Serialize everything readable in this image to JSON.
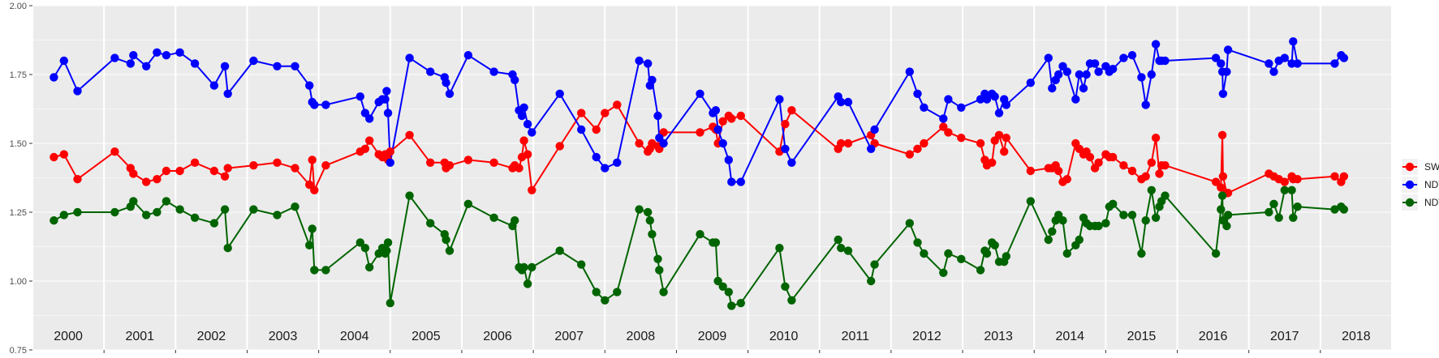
{
  "chart_data": {
    "type": "line",
    "title": "",
    "xlabel": "",
    "ylabel": "",
    "ylim": [
      0.75,
      2.0
    ],
    "y_ticks": [
      "0.75",
      "1.00",
      "1.25",
      "1.50",
      "1.75",
      "2.00"
    ],
    "year_range": [
      2000,
      2019
    ],
    "year_labels": [
      "2000",
      "2001",
      "2002",
      "2003",
      "2004",
      "2005",
      "2006",
      "2007",
      "2008",
      "2009",
      "2010",
      "2011",
      "2012",
      "2013",
      "2014",
      "2015",
      "2016",
      "2017",
      "2018"
    ],
    "grid": true,
    "legend_position": "right",
    "series": [
      {
        "name": "SWIR",
        "color": "#ff0000",
        "x": [
          2000.3,
          2000.44,
          2000.63,
          2001.15,
          2001.37,
          2001.41,
          2001.59,
          2001.74,
          2001.87,
          2002.06,
          2002.27,
          2002.54,
          2002.69,
          2002.73,
          2003.09,
          2003.42,
          2003.67,
          2003.87,
          2003.91,
          2003.94,
          2004.1,
          2004.58,
          2004.65,
          2004.71,
          2004.84,
          2004.89,
          2004.93,
          2004.95,
          2004.97,
          2005.0,
          2005.27,
          2005.56,
          2005.76,
          2005.78,
          2005.83,
          2006.09,
          2006.45,
          2006.71,
          2006.74,
          2006.8,
          2006.84,
          2006.87,
          2006.92,
          2006.98,
          2007.37,
          2007.67,
          2007.88,
          2008.0,
          2008.17,
          2008.48,
          2008.6,
          2008.63,
          2008.66,
          2008.74,
          2008.76,
          2008.82,
          2009.33,
          2009.51,
          2009.55,
          2009.58,
          2009.65,
          2009.73,
          2009.77,
          2009.9,
          2010.44,
          2010.52,
          2010.61,
          2011.26,
          2011.3,
          2011.4,
          2011.72,
          2011.77,
          2012.26,
          2012.37,
          2012.46,
          2012.73,
          2012.8,
          2012.98,
          2013.25,
          2013.31,
          2013.34,
          2013.41,
          2013.45,
          2013.51,
          2013.58,
          2013.61,
          2013.95,
          2014.2,
          2014.25,
          2014.3,
          2014.34,
          2014.4,
          2014.46,
          2014.58,
          2014.63,
          2014.69,
          2014.73,
          2014.78,
          2014.85,
          2014.9,
          2015.0,
          2015.05,
          2015.1,
          2015.25,
          2015.37,
          2015.5,
          2015.56,
          2015.64,
          2015.7,
          2015.75,
          2015.78,
          2015.83,
          2016.54,
          2016.61,
          2016.63,
          2016.64,
          2016.69,
          2016.71,
          2017.28,
          2017.35,
          2017.42,
          2017.5,
          2017.6,
          2017.62,
          2017.68,
          2018.2,
          2018.29,
          2018.33
        ],
        "values": [
          1.45,
          1.46,
          1.37,
          1.47,
          1.41,
          1.39,
          1.36,
          1.37,
          1.4,
          1.4,
          1.43,
          1.4,
          1.38,
          1.41,
          1.42,
          1.43,
          1.41,
          1.35,
          1.44,
          1.33,
          1.42,
          1.47,
          1.48,
          1.51,
          1.46,
          1.45,
          1.46,
          1.45,
          1.44,
          1.47,
          1.53,
          1.43,
          1.43,
          1.41,
          1.42,
          1.44,
          1.43,
          1.41,
          1.42,
          1.41,
          1.45,
          1.51,
          1.46,
          1.33,
          1.49,
          1.61,
          1.55,
          1.61,
          1.64,
          1.5,
          1.47,
          1.48,
          1.5,
          1.49,
          1.48,
          1.54,
          1.54,
          1.56,
          1.55,
          1.5,
          1.58,
          1.6,
          1.59,
          1.6,
          1.47,
          1.57,
          1.62,
          1.48,
          1.5,
          1.5,
          1.53,
          1.5,
          1.46,
          1.48,
          1.5,
          1.56,
          1.54,
          1.52,
          1.5,
          1.44,
          1.42,
          1.43,
          1.51,
          1.53,
          1.47,
          1.52,
          1.4,
          1.41,
          1.41,
          1.42,
          1.4,
          1.36,
          1.37,
          1.5,
          1.48,
          1.46,
          1.47,
          1.45,
          1.41,
          1.43,
          1.46,
          1.45,
          1.45,
          1.42,
          1.4,
          1.37,
          1.38,
          1.43,
          1.52,
          1.39,
          1.42,
          1.42,
          1.36,
          1.34,
          1.53,
          1.38,
          1.32,
          1.32,
          1.39,
          1.38,
          1.37,
          1.36,
          1.38,
          1.37,
          1.37,
          1.38,
          1.36,
          1.38
        ]
      },
      {
        "name": "NDVI",
        "color": "#0000ff",
        "x": [
          2000.3,
          2000.44,
          2000.63,
          2001.15,
          2001.37,
          2001.41,
          2001.59,
          2001.74,
          2001.87,
          2002.06,
          2002.27,
          2002.54,
          2002.69,
          2002.73,
          2003.09,
          2003.42,
          2003.67,
          2003.87,
          2003.91,
          2003.94,
          2004.1,
          2004.58,
          2004.65,
          2004.71,
          2004.84,
          2004.89,
          2004.93,
          2004.95,
          2004.97,
          2005.0,
          2005.27,
          2005.56,
          2005.76,
          2005.78,
          2005.83,
          2006.09,
          2006.45,
          2006.71,
          2006.74,
          2006.8,
          2006.84,
          2006.87,
          2006.92,
          2006.98,
          2007.37,
          2007.67,
          2007.88,
          2008.0,
          2008.17,
          2008.48,
          2008.6,
          2008.63,
          2008.66,
          2008.74,
          2008.76,
          2008.82,
          2009.33,
          2009.51,
          2009.55,
          2009.58,
          2009.65,
          2009.73,
          2009.77,
          2009.9,
          2010.44,
          2010.52,
          2010.61,
          2011.26,
          2011.3,
          2011.4,
          2011.72,
          2011.77,
          2012.26,
          2012.37,
          2012.46,
          2012.73,
          2012.8,
          2012.98,
          2013.25,
          2013.31,
          2013.34,
          2013.41,
          2013.45,
          2013.51,
          2013.58,
          2013.61,
          2013.95,
          2014.2,
          2014.25,
          2014.3,
          2014.34,
          2014.4,
          2014.46,
          2014.58,
          2014.63,
          2014.69,
          2014.73,
          2014.78,
          2014.85,
          2014.9,
          2015.0,
          2015.05,
          2015.1,
          2015.25,
          2015.37,
          2015.5,
          2015.56,
          2015.64,
          2015.7,
          2015.75,
          2015.78,
          2015.83,
          2016.54,
          2016.61,
          2016.63,
          2016.64,
          2016.69,
          2016.71,
          2017.28,
          2017.35,
          2017.42,
          2017.5,
          2017.6,
          2017.62,
          2017.68,
          2018.2,
          2018.29,
          2018.33
        ],
        "values": [
          1.74,
          1.8,
          1.69,
          1.81,
          1.79,
          1.82,
          1.78,
          1.83,
          1.82,
          1.83,
          1.79,
          1.71,
          1.78,
          1.68,
          1.8,
          1.78,
          1.78,
          1.71,
          1.65,
          1.64,
          1.64,
          1.67,
          1.61,
          1.59,
          1.65,
          1.66,
          1.66,
          1.69,
          1.61,
          1.43,
          1.81,
          1.76,
          1.74,
          1.72,
          1.68,
          1.82,
          1.76,
          1.75,
          1.73,
          1.62,
          1.6,
          1.63,
          1.57,
          1.54,
          1.68,
          1.55,
          1.45,
          1.41,
          1.43,
          1.8,
          1.79,
          1.71,
          1.73,
          1.6,
          1.52,
          1.5,
          1.68,
          1.61,
          1.62,
          1.55,
          1.5,
          1.44,
          1.36,
          1.36,
          1.66,
          1.48,
          1.43,
          1.67,
          1.65,
          1.65,
          1.48,
          1.55,
          1.76,
          1.68,
          1.63,
          1.59,
          1.66,
          1.63,
          1.66,
          1.68,
          1.66,
          1.68,
          1.67,
          1.61,
          1.66,
          1.64,
          1.72,
          1.81,
          1.7,
          1.73,
          1.75,
          1.78,
          1.76,
          1.66,
          1.75,
          1.7,
          1.75,
          1.79,
          1.79,
          1.76,
          1.78,
          1.76,
          1.77,
          1.81,
          1.82,
          1.74,
          1.64,
          1.75,
          1.86,
          1.8,
          1.8,
          1.8,
          1.81,
          1.79,
          1.76,
          1.68,
          1.76,
          1.84,
          1.79,
          1.76,
          1.8,
          1.81,
          1.79,
          1.87,
          1.79,
          1.79,
          1.82,
          1.81
        ]
      },
      {
        "name": "NDWI",
        "color": "#006400",
        "x": [
          2000.3,
          2000.44,
          2000.63,
          2001.15,
          2001.37,
          2001.41,
          2001.59,
          2001.74,
          2001.87,
          2002.06,
          2002.27,
          2002.54,
          2002.69,
          2002.73,
          2003.09,
          2003.42,
          2003.67,
          2003.87,
          2003.91,
          2003.94,
          2004.1,
          2004.58,
          2004.65,
          2004.71,
          2004.84,
          2004.89,
          2004.93,
          2004.95,
          2004.97,
          2005.0,
          2005.27,
          2005.56,
          2005.76,
          2005.78,
          2005.83,
          2006.09,
          2006.45,
          2006.71,
          2006.74,
          2006.8,
          2006.84,
          2006.87,
          2006.92,
          2006.98,
          2007.37,
          2007.67,
          2007.88,
          2008.0,
          2008.17,
          2008.48,
          2008.6,
          2008.63,
          2008.66,
          2008.74,
          2008.76,
          2008.82,
          2009.33,
          2009.51,
          2009.55,
          2009.58,
          2009.65,
          2009.73,
          2009.77,
          2009.9,
          2010.44,
          2010.52,
          2010.61,
          2011.26,
          2011.3,
          2011.4,
          2011.72,
          2011.77,
          2012.26,
          2012.37,
          2012.46,
          2012.73,
          2012.8,
          2012.98,
          2013.25,
          2013.31,
          2013.34,
          2013.41,
          2013.45,
          2013.51,
          2013.58,
          2013.61,
          2013.95,
          2014.2,
          2014.25,
          2014.3,
          2014.34,
          2014.4,
          2014.46,
          2014.58,
          2014.63,
          2014.69,
          2014.73,
          2014.78,
          2014.85,
          2014.9,
          2015.0,
          2015.05,
          2015.1,
          2015.25,
          2015.37,
          2015.5,
          2015.56,
          2015.64,
          2015.7,
          2015.75,
          2015.78,
          2015.83,
          2016.54,
          2016.61,
          2016.63,
          2016.64,
          2016.69,
          2016.71,
          2017.28,
          2017.35,
          2017.42,
          2017.5,
          2017.6,
          2017.62,
          2017.68,
          2018.2,
          2018.29,
          2018.33
        ],
        "values": [
          1.22,
          1.24,
          1.25,
          1.25,
          1.27,
          1.29,
          1.24,
          1.25,
          1.29,
          1.26,
          1.23,
          1.21,
          1.26,
          1.12,
          1.26,
          1.24,
          1.27,
          1.13,
          1.19,
          1.04,
          1.04,
          1.14,
          1.12,
          1.05,
          1.1,
          1.12,
          1.1,
          1.11,
          1.14,
          0.92,
          1.31,
          1.21,
          1.17,
          1.15,
          1.11,
          1.28,
          1.23,
          1.2,
          1.22,
          1.05,
          1.04,
          1.05,
          0.99,
          1.05,
          1.11,
          1.06,
          0.96,
          0.93,
          0.96,
          1.26,
          1.25,
          1.22,
          1.17,
          1.08,
          1.04,
          0.96,
          1.17,
          1.14,
          1.14,
          1.0,
          0.98,
          0.96,
          0.91,
          0.92,
          1.12,
          0.98,
          0.93,
          1.15,
          1.12,
          1.11,
          1.0,
          1.06,
          1.21,
          1.14,
          1.1,
          1.03,
          1.1,
          1.08,
          1.04,
          1.11,
          1.1,
          1.14,
          1.13,
          1.07,
          1.07,
          1.09,
          1.29,
          1.15,
          1.18,
          1.22,
          1.24,
          1.22,
          1.1,
          1.13,
          1.15,
          1.23,
          1.21,
          1.2,
          1.2,
          1.2,
          1.21,
          1.27,
          1.28,
          1.24,
          1.24,
          1.1,
          1.22,
          1.33,
          1.23,
          1.27,
          1.29,
          1.31,
          1.1,
          1.26,
          1.31,
          1.22,
          1.2,
          1.24,
          1.25,
          1.28,
          1.23,
          1.33,
          1.33,
          1.23,
          1.27,
          1.26,
          1.27,
          1.26
        ]
      }
    ]
  }
}
